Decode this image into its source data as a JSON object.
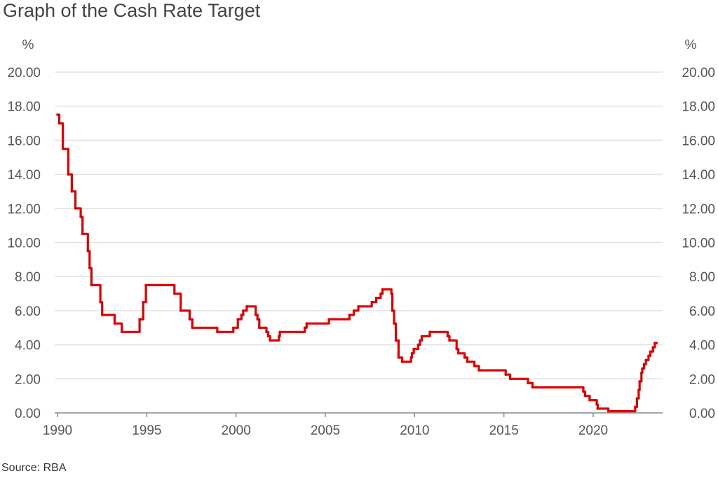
{
  "chart_data": {
    "type": "line",
    "title": "Graph of the Cash Rate Target",
    "source": "Source: RBA",
    "ylabel_left": "%",
    "ylabel_right": "%",
    "ylim": [
      0,
      20
    ],
    "yticks": [
      "0.00",
      "2.00",
      "4.00",
      "6.00",
      "8.00",
      "10.00",
      "12.00",
      "14.00",
      "16.00",
      "18.00",
      "20.00"
    ],
    "xlim": [
      1990,
      2023.6
    ],
    "xticks": [
      "1990",
      "1995",
      "2000",
      "2005",
      "2010",
      "2015",
      "2020"
    ],
    "grid": true,
    "line_color": "#e00000",
    "series": [
      {
        "step": true,
        "points": [
          [
            1990.0,
            17.5
          ],
          [
            1990.1,
            17.0
          ],
          [
            1990.3,
            15.5
          ],
          [
            1990.6,
            14.0
          ],
          [
            1990.8,
            13.0
          ],
          [
            1991.0,
            12.0
          ],
          [
            1991.3,
            11.5
          ],
          [
            1991.4,
            10.5
          ],
          [
            1991.7,
            9.5
          ],
          [
            1991.8,
            8.5
          ],
          [
            1991.9,
            7.5
          ],
          [
            1992.4,
            6.5
          ],
          [
            1992.5,
            5.75
          ],
          [
            1993.2,
            5.25
          ],
          [
            1993.6,
            4.75
          ],
          [
            1994.6,
            5.5
          ],
          [
            1994.8,
            6.5
          ],
          [
            1994.95,
            7.5
          ],
          [
            1996.55,
            7.0
          ],
          [
            1996.9,
            6.0
          ],
          [
            1997.4,
            5.5
          ],
          [
            1997.55,
            5.0
          ],
          [
            1998.95,
            4.75
          ],
          [
            1999.85,
            5.0
          ],
          [
            2000.1,
            5.5
          ],
          [
            2000.3,
            5.75
          ],
          [
            2000.4,
            6.0
          ],
          [
            2000.6,
            6.25
          ],
          [
            2001.1,
            5.75
          ],
          [
            2001.2,
            5.5
          ],
          [
            2001.3,
            5.0
          ],
          [
            2001.7,
            4.75
          ],
          [
            2001.8,
            4.5
          ],
          [
            2001.9,
            4.25
          ],
          [
            2002.4,
            4.5
          ],
          [
            2002.45,
            4.75
          ],
          [
            2003.85,
            5.0
          ],
          [
            2003.95,
            5.25
          ],
          [
            2005.2,
            5.5
          ],
          [
            2006.35,
            5.75
          ],
          [
            2006.6,
            6.0
          ],
          [
            2006.85,
            6.25
          ],
          [
            2007.6,
            6.5
          ],
          [
            2007.85,
            6.75
          ],
          [
            2008.1,
            7.0
          ],
          [
            2008.2,
            7.25
          ],
          [
            2008.7,
            7.0
          ],
          [
            2008.75,
            6.0
          ],
          [
            2008.85,
            5.25
          ],
          [
            2008.95,
            4.25
          ],
          [
            2009.1,
            3.25
          ],
          [
            2009.3,
            3.0
          ],
          [
            2009.8,
            3.25
          ],
          [
            2009.85,
            3.5
          ],
          [
            2009.95,
            3.75
          ],
          [
            2010.2,
            4.0
          ],
          [
            2010.3,
            4.25
          ],
          [
            2010.4,
            4.5
          ],
          [
            2010.85,
            4.75
          ],
          [
            2011.85,
            4.5
          ],
          [
            2011.95,
            4.25
          ],
          [
            2012.35,
            3.75
          ],
          [
            2012.45,
            3.5
          ],
          [
            2012.8,
            3.25
          ],
          [
            2012.95,
            3.0
          ],
          [
            2013.35,
            2.75
          ],
          [
            2013.6,
            2.5
          ],
          [
            2015.1,
            2.25
          ],
          [
            2015.35,
            2.0
          ],
          [
            2016.35,
            1.75
          ],
          [
            2016.6,
            1.5
          ],
          [
            2019.45,
            1.25
          ],
          [
            2019.55,
            1.0
          ],
          [
            2019.8,
            0.75
          ],
          [
            2020.2,
            0.5
          ],
          [
            2020.25,
            0.25
          ],
          [
            2020.85,
            0.1
          ],
          [
            2022.35,
            0.35
          ],
          [
            2022.45,
            0.85
          ],
          [
            2022.55,
            1.35
          ],
          [
            2022.6,
            1.85
          ],
          [
            2022.7,
            2.35
          ],
          [
            2022.75,
            2.6
          ],
          [
            2022.85,
            2.85
          ],
          [
            2022.95,
            3.1
          ],
          [
            2023.1,
            3.35
          ],
          [
            2023.2,
            3.6
          ],
          [
            2023.35,
            3.85
          ],
          [
            2023.45,
            4.1
          ],
          [
            2023.55,
            4.1
          ]
        ]
      }
    ]
  }
}
